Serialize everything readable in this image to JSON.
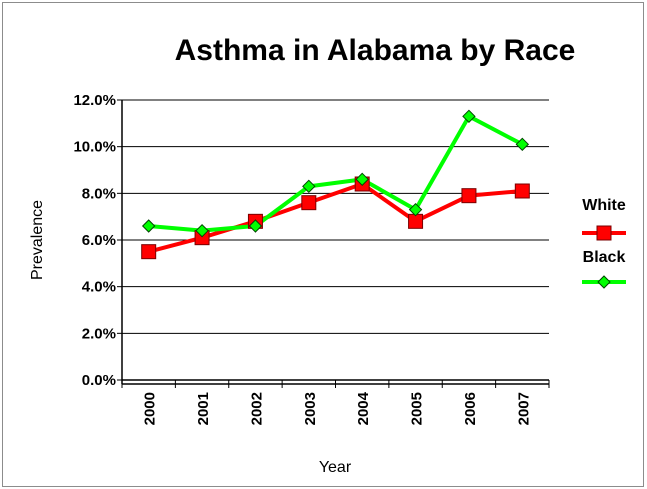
{
  "chart_data": {
    "type": "line",
    "title": "Asthma in Alabama by Race",
    "xlabel": "Year",
    "ylabel": "Prevalence",
    "categories": [
      "2000",
      "2001",
      "2002",
      "2003",
      "2004",
      "2005",
      "2006",
      "2007"
    ],
    "y_ticks": [
      "0.0%",
      "2.0%",
      "4.0%",
      "6.0%",
      "8.0%",
      "10.0%",
      "12.0%"
    ],
    "ylim": [
      0,
      12
    ],
    "grid": "horizontal",
    "legend_position": "right",
    "series": [
      {
        "name": "White",
        "color": "#ff0000",
        "marker": "square",
        "values": [
          5.5,
          6.1,
          6.8,
          7.6,
          8.4,
          6.8,
          7.9,
          8.1
        ]
      },
      {
        "name": "Black",
        "color": "#00ff00",
        "marker": "diamond",
        "values": [
          6.6,
          6.4,
          6.6,
          8.3,
          8.6,
          7.3,
          11.3,
          10.1
        ]
      }
    ]
  }
}
